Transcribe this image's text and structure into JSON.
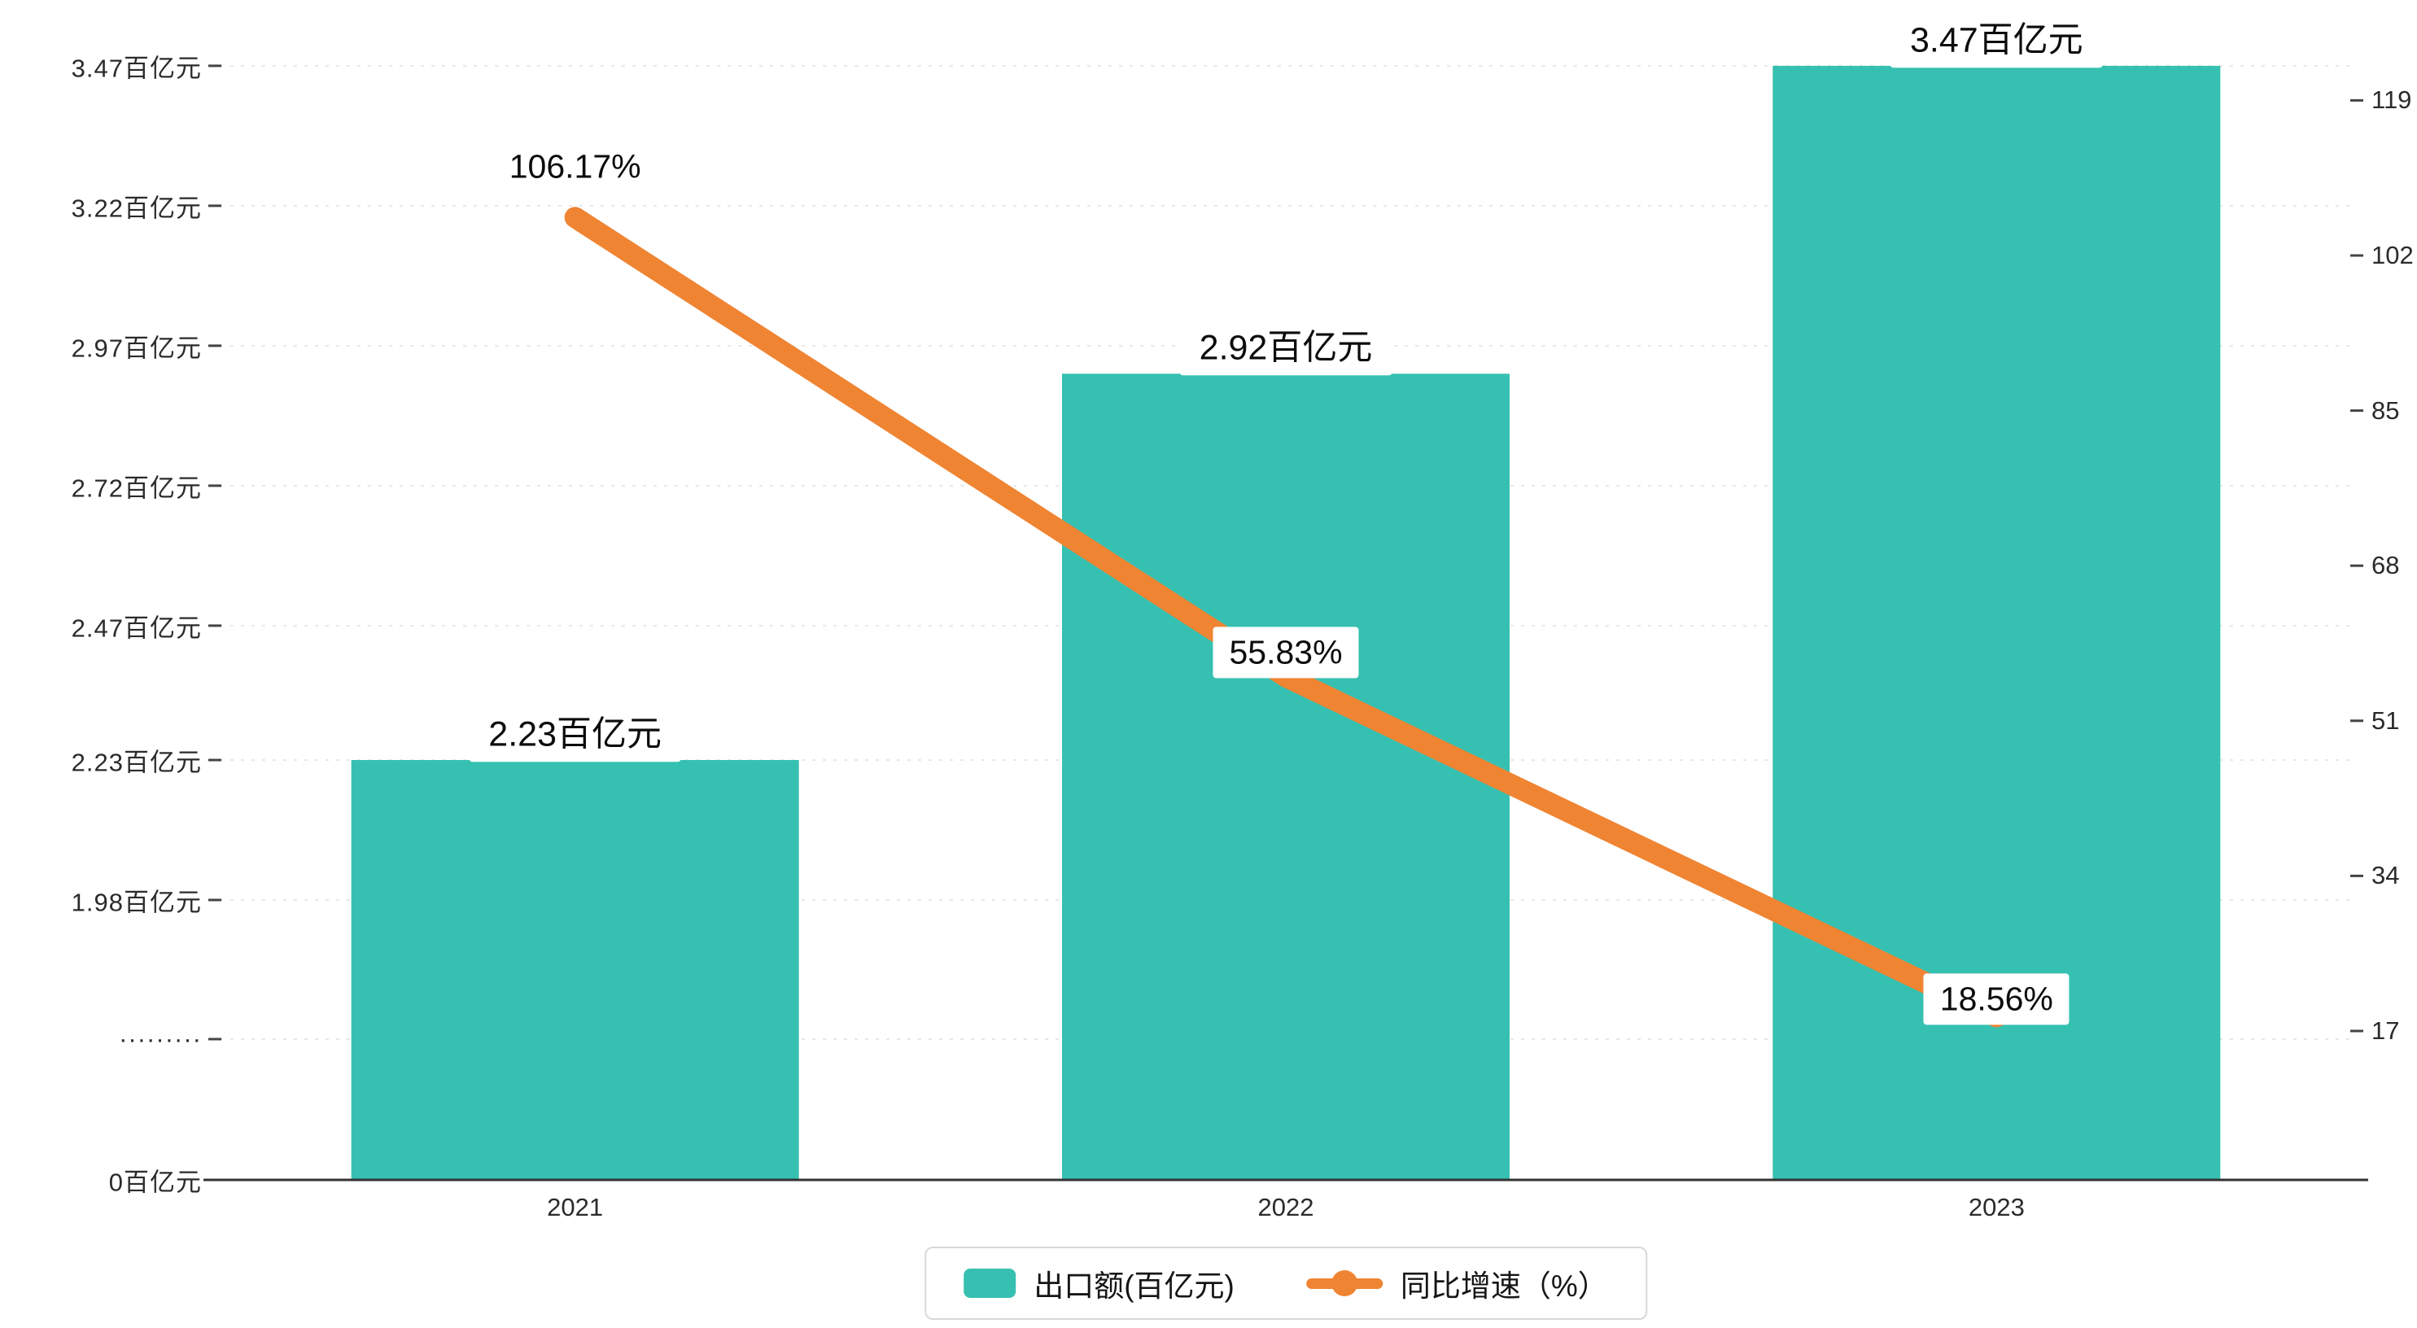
{
  "chart_data": {
    "type": "bar",
    "subtype": "bar-line-combo",
    "categories": [
      "2021",
      "2022",
      "2023"
    ],
    "series": [
      {
        "name": "出口额(百亿元)",
        "type": "bar",
        "values": [
          2.23,
          2.92,
          3.47
        ],
        "labels": [
          "2.23百亿元",
          "2.92百亿元",
          "3.47百亿元"
        ],
        "color": "#36c0b1"
      },
      {
        "name": "同比增速（%）",
        "type": "line",
        "values": [
          106.17,
          55.83,
          18.56
        ],
        "labels": [
          "106.17%",
          "55.83%",
          "18.56%"
        ],
        "color": "#ef8433"
      }
    ],
    "left_axis": {
      "tick_labels": [
        "3.47百亿元",
        "3.22百亿元",
        "2.97百亿元",
        "2.72百亿元",
        "2.47百亿元",
        "2.23百亿元",
        "1.98百亿元"
      ],
      "tick_values": [
        3.47,
        3.22,
        2.97,
        2.72,
        2.47,
        2.23,
        1.98
      ],
      "break_label": "·········",
      "zero_label": "0百亿元"
    },
    "right_axis": {
      "tick_labels": [
        "119",
        "102",
        "85",
        "68",
        "51",
        "34",
        "17"
      ],
      "tick_values": [
        119,
        102,
        85,
        68,
        51,
        34,
        17
      ]
    },
    "legend": [
      {
        "label": "出口额(百亿元)",
        "marker": "bar",
        "color": "#36c0b1"
      },
      {
        "label": "同比增速（%）",
        "marker": "line",
        "color": "#ef8433"
      }
    ],
    "grid": "dashed-horizontal",
    "legend_position": "bottom-center"
  }
}
